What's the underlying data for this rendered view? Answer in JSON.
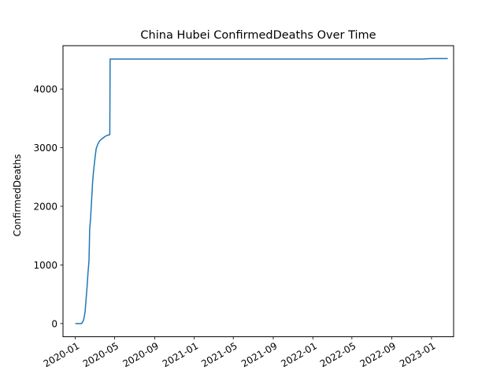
{
  "chart_data": {
    "type": "line",
    "title": "China Hubei ConfirmedDeaths Over Time",
    "xlabel": "",
    "ylabel": "ConfirmedDeaths",
    "x_range": [
      "2019-11-24",
      "2023-03-10"
    ],
    "ylim": [
      -225,
      4740
    ],
    "x_ticks": [
      "2020-01",
      "2020-05",
      "2020-09",
      "2021-01",
      "2021-05",
      "2021-09",
      "2022-01",
      "2022-05",
      "2022-09",
      "2023-01"
    ],
    "y_ticks": [
      0,
      1000,
      2000,
      3000,
      4000
    ],
    "grid": false,
    "line_color": "#1f77b4",
    "series": [
      {
        "points": [
          [
            "2020-01-01",
            0
          ],
          [
            "2020-01-20",
            0
          ],
          [
            "2020-01-22",
            17
          ],
          [
            "2020-01-25",
            40
          ],
          [
            "2020-01-28",
            100
          ],
          [
            "2020-01-31",
            204
          ],
          [
            "2020-02-03",
            414
          ],
          [
            "2020-02-06",
            618
          ],
          [
            "2020-02-09",
            871
          ],
          [
            "2020-02-12",
            1068
          ],
          [
            "2020-02-13",
            1310
          ],
          [
            "2020-02-14",
            1600
          ],
          [
            "2020-02-17",
            1800
          ],
          [
            "2020-02-20",
            2100
          ],
          [
            "2020-02-23",
            2400
          ],
          [
            "2020-02-26",
            2600
          ],
          [
            "2020-03-01",
            2800
          ],
          [
            "2020-03-05",
            2980
          ],
          [
            "2020-03-10",
            3060
          ],
          [
            "2020-03-15",
            3110
          ],
          [
            "2020-03-20",
            3140
          ],
          [
            "2020-03-25",
            3160
          ],
          [
            "2020-04-01",
            3190
          ],
          [
            "2020-04-08",
            3210
          ],
          [
            "2020-04-16",
            3222
          ],
          [
            "2020-04-17",
            4512
          ],
          [
            "2021-01-01",
            4512
          ],
          [
            "2022-01-01",
            4512
          ],
          [
            "2022-12-01",
            4512
          ],
          [
            "2023-01-01",
            4520
          ],
          [
            "2023-02-20",
            4520
          ]
        ]
      }
    ]
  }
}
